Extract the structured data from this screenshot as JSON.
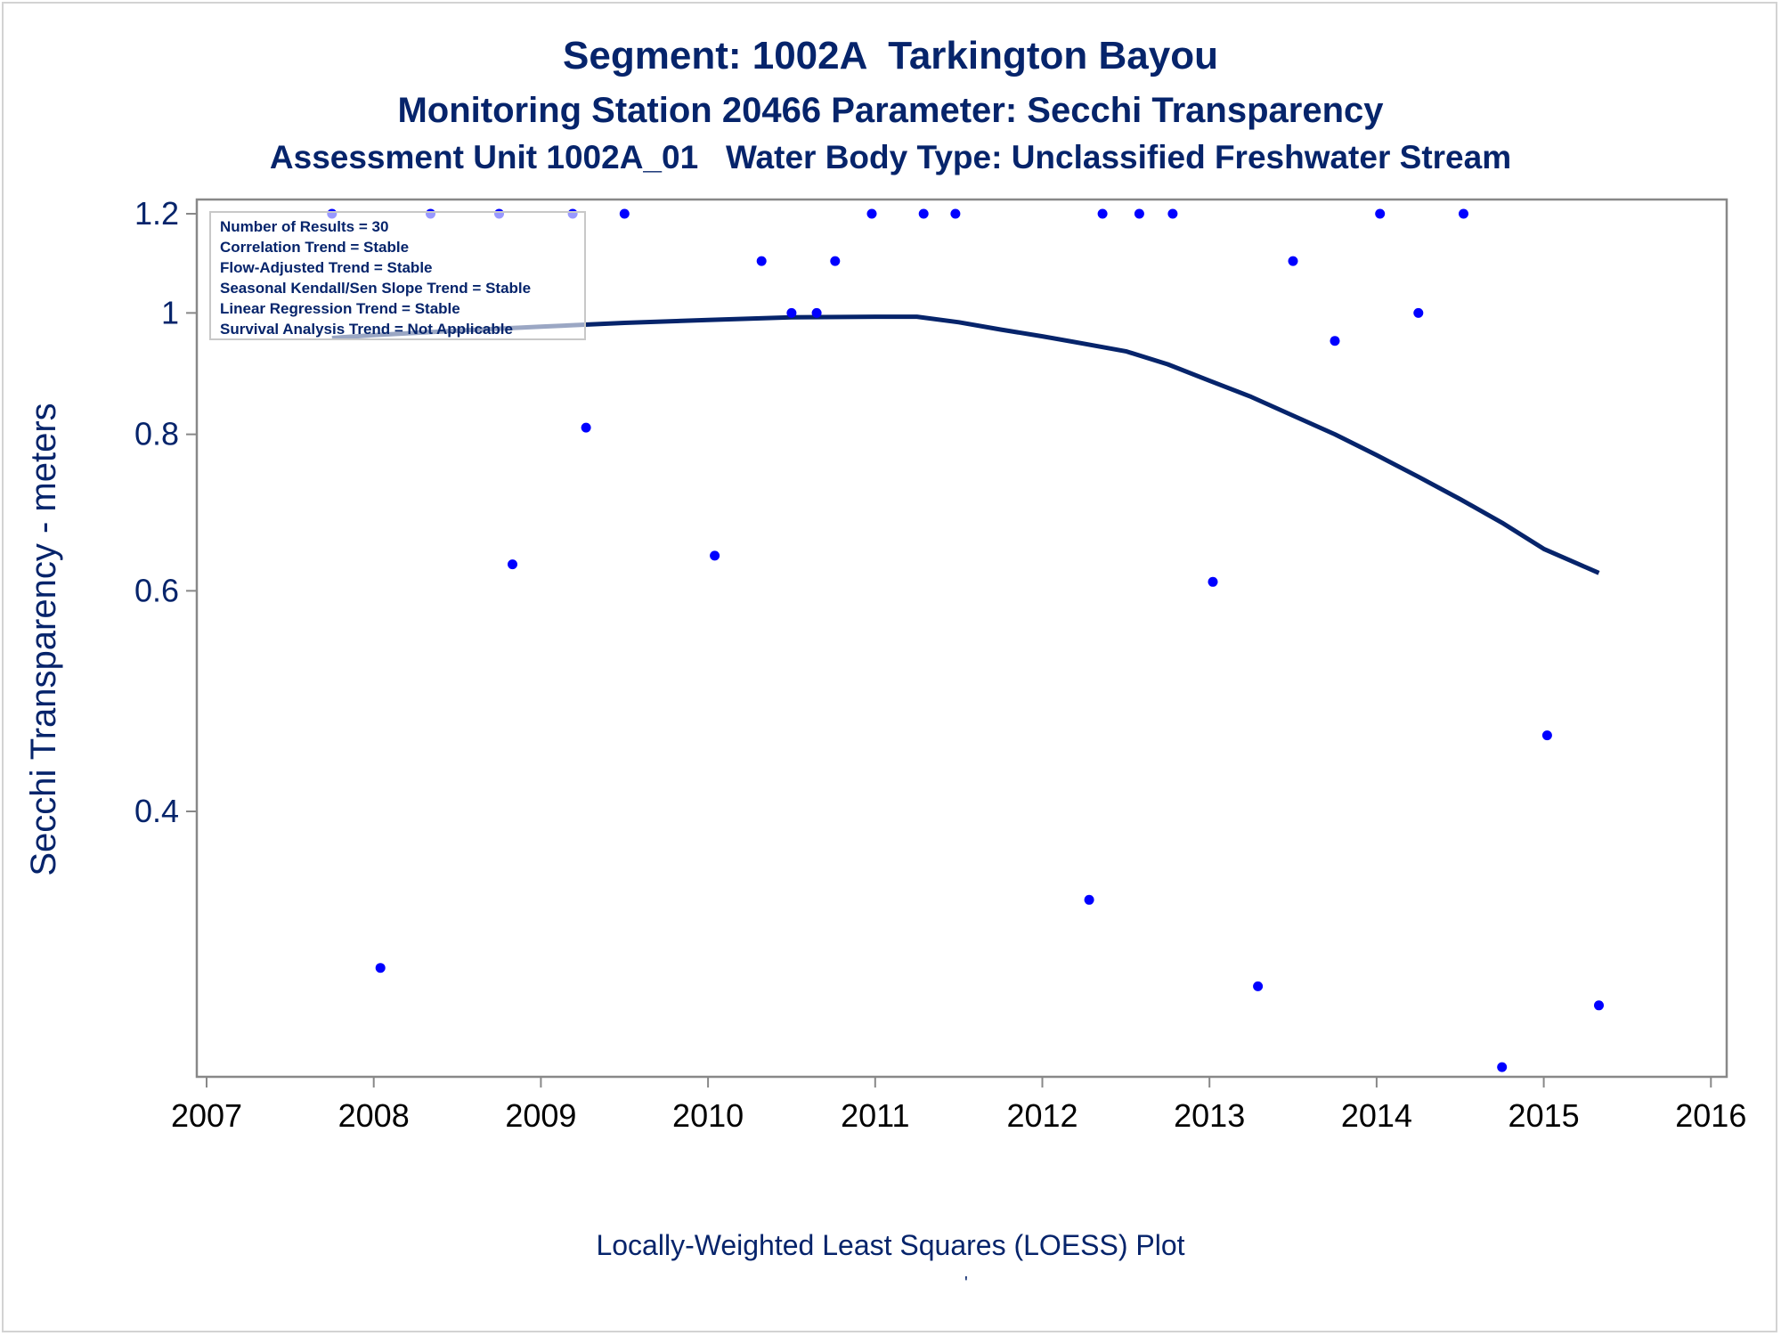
{
  "titles": {
    "line1": "Segment: 1002A  Tarkington Bayou",
    "line2": "Monitoring Station 20466 Parameter: Secchi Transparency",
    "line3": "Assessment Unit 1002A_01   Water Body Type: Unclassified Freshwater Stream"
  },
  "footnote": "Locally-Weighted Least Squares (LOESS) Plot",
  "footnote_mark": "'",
  "colors": {
    "title": "#06246b",
    "points": "#0000ff",
    "loess_line": "#06246b",
    "axis": "#888888",
    "legend_border": "#c8c8c8"
  },
  "chart_data": {
    "type": "scatter",
    "xlabel": "",
    "ylabel": "Secchi Transparency - meters",
    "y_scale": "log",
    "xlim": [
      2007,
      2016
    ],
    "ylim": [
      0.25,
      1.22
    ],
    "x_ticks": [
      2007,
      2008,
      2009,
      2010,
      2011,
      2012,
      2013,
      2014,
      2015,
      2016
    ],
    "y_ticks": [
      {
        "value": 0.4,
        "label": "0.4"
      },
      {
        "value": 0.6,
        "label": "0.6"
      },
      {
        "value": 0.8,
        "label": "0.8"
      },
      {
        "value": 1.0,
        "label": "1"
      },
      {
        "value": 1.2,
        "label": "1.2"
      }
    ],
    "grid": false,
    "stats_box": [
      "Number of Results = 30",
      "Correlation Trend = Stable",
      "Flow-Adjusted Trend = Stable",
      "Seasonal Kendall/Sen Slope Trend = Stable",
      "Linear Regression Trend = Stable",
      "Survival Analysis Trend = Not Applicable"
    ],
    "stats_box_position": "top-left",
    "points": [
      {
        "x": 2007.75,
        "y": 1.2
      },
      {
        "x": 2008.04,
        "y": 0.3
      },
      {
        "x": 2008.34,
        "y": 1.2
      },
      {
        "x": 2008.75,
        "y": 1.2
      },
      {
        "x": 2008.83,
        "y": 0.63
      },
      {
        "x": 2009.19,
        "y": 1.2
      },
      {
        "x": 2009.27,
        "y": 0.81
      },
      {
        "x": 2009.5,
        "y": 1.2
      },
      {
        "x": 2010.04,
        "y": 0.64
      },
      {
        "x": 2010.32,
        "y": 1.1
      },
      {
        "x": 2010.5,
        "y": 1.0
      },
      {
        "x": 2010.65,
        "y": 1.0
      },
      {
        "x": 2010.76,
        "y": 1.1
      },
      {
        "x": 2010.98,
        "y": 1.2
      },
      {
        "x": 2011.29,
        "y": 1.2
      },
      {
        "x": 2011.48,
        "y": 1.2
      },
      {
        "x": 2012.28,
        "y": 0.34
      },
      {
        "x": 2012.36,
        "y": 1.2
      },
      {
        "x": 2012.58,
        "y": 1.2
      },
      {
        "x": 2012.78,
        "y": 1.2
      },
      {
        "x": 2013.02,
        "y": 0.61
      },
      {
        "x": 2013.29,
        "y": 0.29
      },
      {
        "x": 2013.5,
        "y": 1.1
      },
      {
        "x": 2013.75,
        "y": 0.95
      },
      {
        "x": 2014.02,
        "y": 1.2
      },
      {
        "x": 2014.25,
        "y": 1.0
      },
      {
        "x": 2014.52,
        "y": 1.2
      },
      {
        "x": 2014.75,
        "y": 0.25
      },
      {
        "x": 2015.02,
        "y": 0.46
      },
      {
        "x": 2015.33,
        "y": 0.28
      }
    ],
    "loess": {
      "name": "",
      "x": [
        2007.75,
        2008.0,
        2008.5,
        2009.0,
        2009.5,
        2010.0,
        2010.5,
        2011.0,
        2011.25,
        2011.5,
        2011.75,
        2012.0,
        2012.25,
        2012.5,
        2012.75,
        2013.0,
        2013.25,
        2013.5,
        2013.75,
        2014.0,
        2014.25,
        2014.5,
        2014.75,
        2015.0,
        2015.33
      ],
      "y": [
        0.955,
        0.96,
        0.968,
        0.975,
        0.982,
        0.987,
        0.992,
        0.993,
        0.993,
        0.983,
        0.97,
        0.958,
        0.945,
        0.932,
        0.91,
        0.883,
        0.857,
        0.828,
        0.8,
        0.77,
        0.74,
        0.71,
        0.68,
        0.648,
        0.62
      ]
    }
  }
}
